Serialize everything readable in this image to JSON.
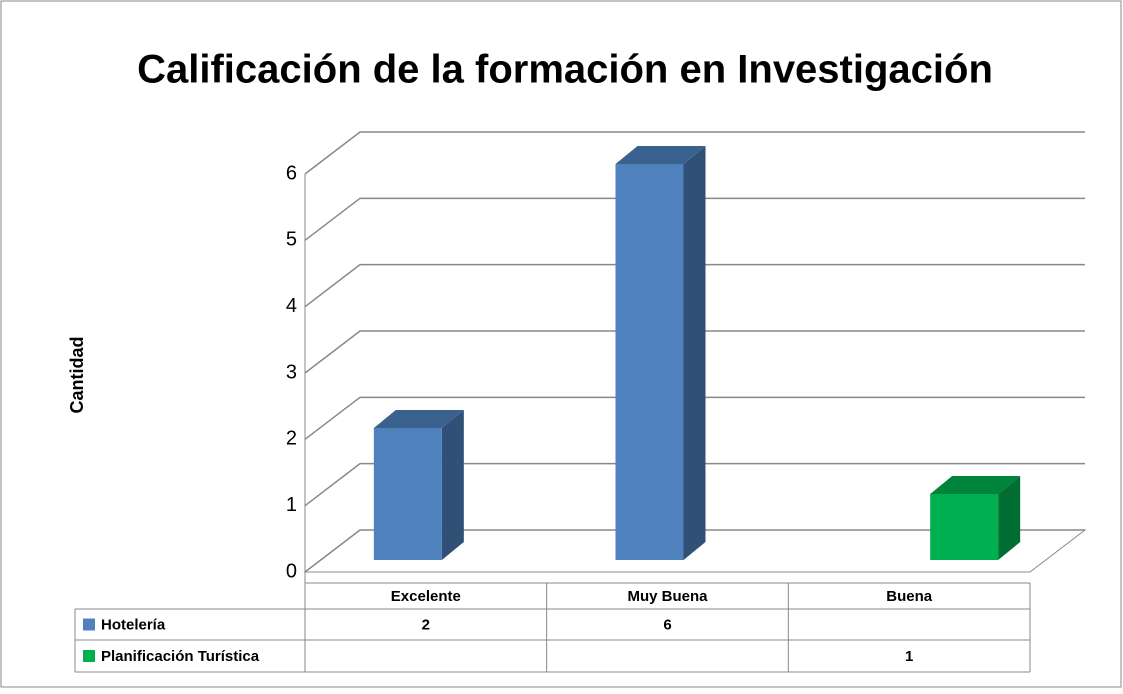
{
  "chart_data": {
    "type": "bar3d",
    "title": "Calificación de la formación en Investigación",
    "ylabel": "Cantidad",
    "categories": [
      "Excelente",
      "Muy Buena",
      "Buena"
    ],
    "series": [
      {
        "name": "Hotelería",
        "color": "#4f81bd",
        "values": [
          2,
          6,
          null
        ]
      },
      {
        "name": "Planificación Turística",
        "color": "#00b050",
        "values": [
          null,
          null,
          1
        ]
      }
    ],
    "ylim": [
      0,
      6
    ],
    "yticks": [
      0,
      1,
      2,
      3,
      4,
      5,
      6
    ],
    "grid": true
  }
}
